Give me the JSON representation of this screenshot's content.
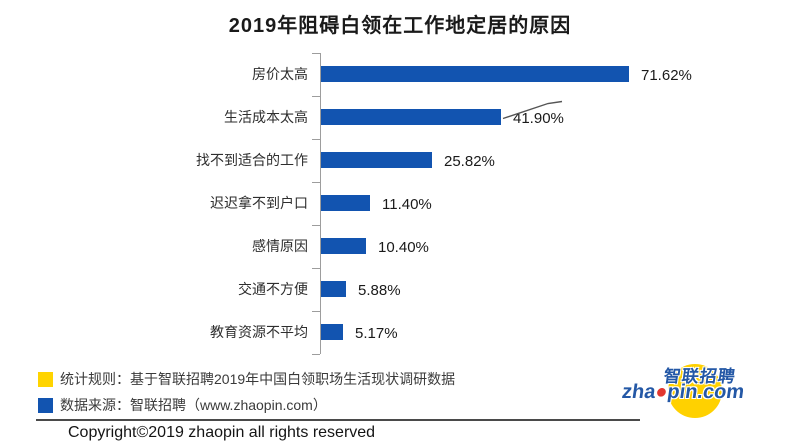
{
  "title": "2019年阻碍白领在工作地定居的原因",
  "chart_data": {
    "type": "bar",
    "orientation": "horizontal",
    "title": "2019年阻碍白领在工作地定居的原因",
    "categories": [
      "房价太高",
      "生活成本太高",
      "找不到适合的工作",
      "迟迟拿不到户口",
      "感情原因",
      "交通不方便",
      "教育资源不平均"
    ],
    "values": [
      71.62,
      41.9,
      25.82,
      11.4,
      10.4,
      5.88,
      5.17
    ],
    "value_labels": [
      "71.62%",
      "41.90%",
      "25.82%",
      "11.40%",
      "10.40%",
      "5.88%",
      "5.17%"
    ],
    "unit": "%",
    "xlim": [
      0,
      80
    ],
    "grid": false,
    "legend_position": "none",
    "bar_color": "#1254b0",
    "callout_category_index": 1
  },
  "legend": {
    "items": [
      {
        "color": "#ffd400",
        "icon": "yellow-square",
        "text": "统计规则：基于智联招聘2019年中国白领职场生活现状调研数据"
      },
      {
        "color": "#1254b0",
        "icon": "blue-square",
        "text": "数据来源：智联招聘（www.zhaopin.com）"
      }
    ]
  },
  "logo": {
    "cn_text": "智联招聘",
    "domain_prefix": "zha",
    "domain_dot": "●",
    "domain_suffix": "pin.com"
  },
  "copyright": "Copyright©2019 zhaopin all rights reserved",
  "colors": {
    "bar_blue": "#1254b0",
    "legend_yellow": "#ffd400",
    "logo_yellow": "#ffd100",
    "logo_blue": "#2458a6",
    "logo_red": "#e2372f",
    "axis_gray": "#9d9d9d"
  }
}
